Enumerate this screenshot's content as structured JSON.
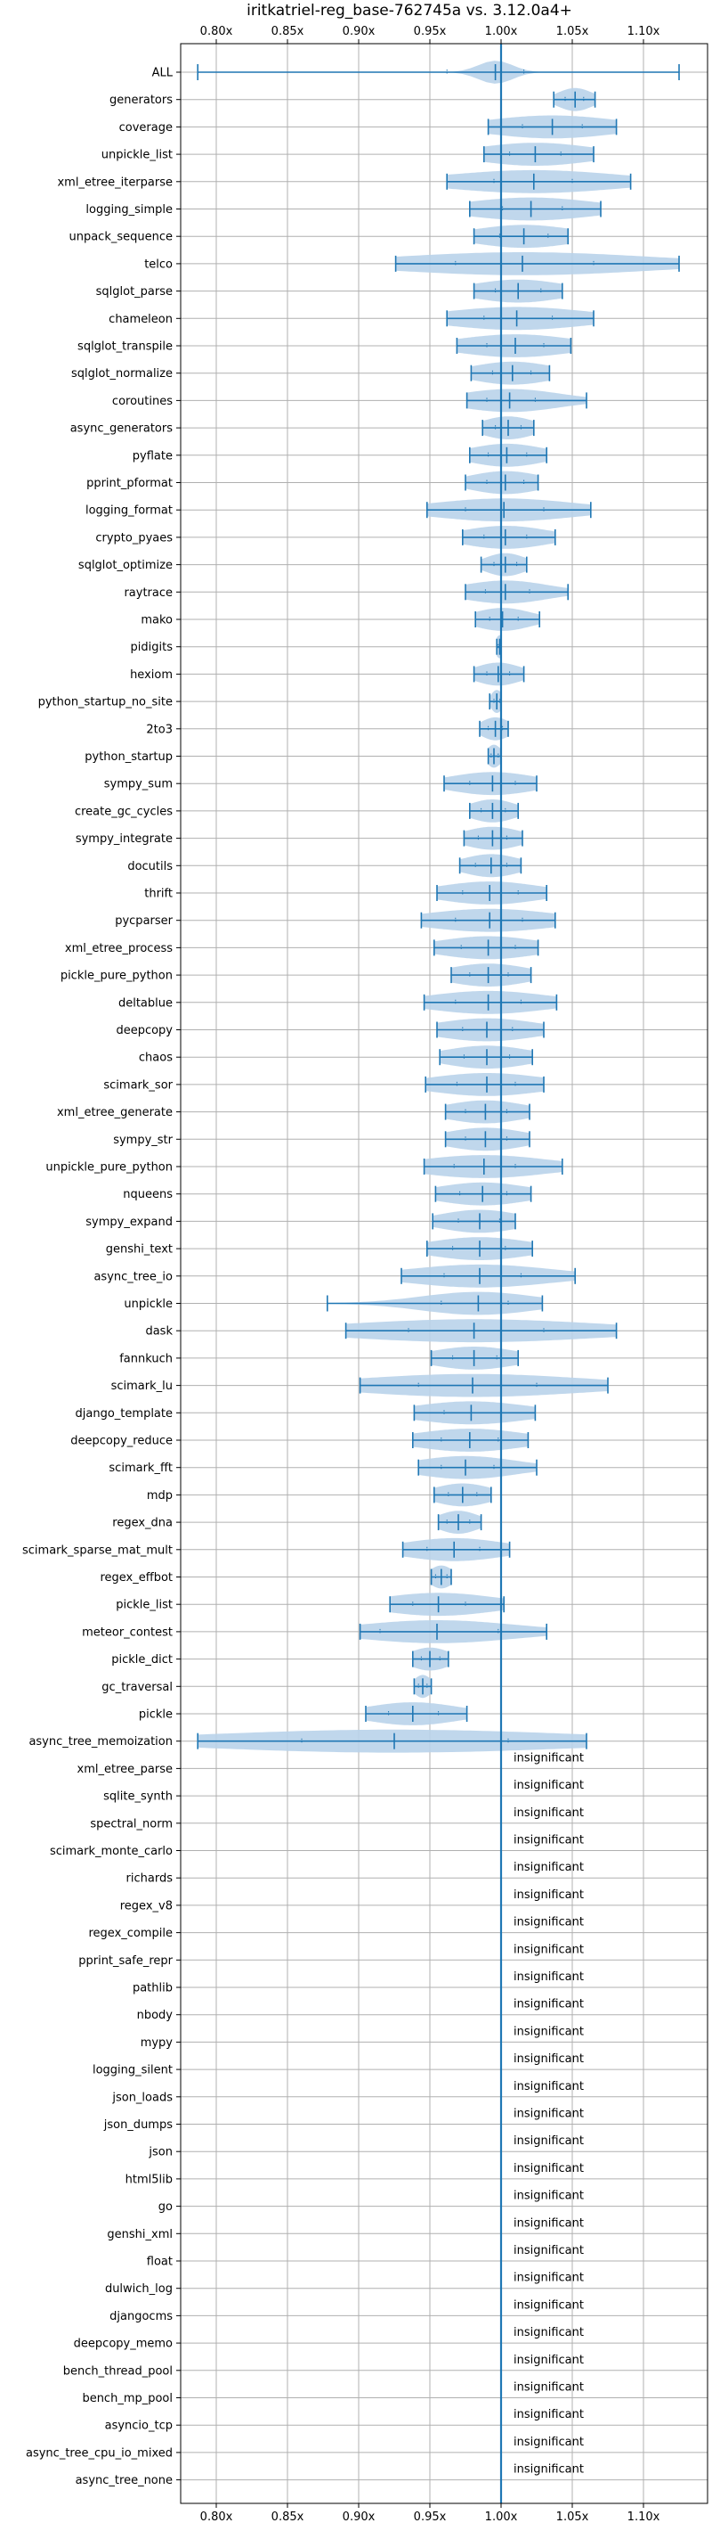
{
  "chart_data": {
    "type": "violin",
    "title": "iritkatriel-reg_base-762745a vs. 3.12.0a4+",
    "xlabel": "",
    "ylabel": "",
    "x_axis_position": "top and bottom",
    "xlim": [
      0.775,
      1.145
    ],
    "xticks": [
      0.8,
      0.85,
      0.9,
      0.95,
      1.0,
      1.05,
      1.1
    ],
    "xtick_labels": [
      "0.80x",
      "0.85x",
      "0.90x",
      "0.95x",
      "1.00x",
      "1.05x",
      "1.10x"
    ],
    "grid": true,
    "reference_line": 1.0,
    "colors": {
      "accent": "#1f77b4",
      "violin_fill": "#b9d3ea",
      "grid": "#b0b0b0"
    },
    "insignificant_label": "insignificant",
    "benchmarks": [
      {
        "name": "ALL",
        "min": 0.787,
        "max": 1.125,
        "median": 0.996,
        "q1": 0.962,
        "q3": 1.016,
        "spread": 0.012
      },
      {
        "name": "generators",
        "min": 1.037,
        "max": 1.066,
        "median": 1.052,
        "q1": 1.045,
        "q3": 1.058,
        "spread": 0.012
      },
      {
        "name": "coverage",
        "min": 0.991,
        "max": 1.081,
        "median": 1.036,
        "q1": 1.015,
        "q3": 1.057,
        "spread": 0.045
      },
      {
        "name": "unpickle_list",
        "min": 0.988,
        "max": 1.065,
        "median": 1.024,
        "q1": 1.006,
        "q3": 1.042,
        "spread": 0.04
      },
      {
        "name": "xml_etree_iterparse",
        "min": 0.962,
        "max": 1.091,
        "median": 1.023,
        "q1": 0.995,
        "q3": 1.05,
        "spread": 0.06
      },
      {
        "name": "logging_simple",
        "min": 0.978,
        "max": 1.07,
        "median": 1.021,
        "q1": 1.001,
        "q3": 1.043,
        "spread": 0.045
      },
      {
        "name": "unpack_sequence",
        "min": 0.981,
        "max": 1.047,
        "median": 1.016,
        "q1": 0.999,
        "q3": 1.033,
        "spread": 0.035
      },
      {
        "name": "telco",
        "min": 0.926,
        "max": 1.125,
        "median": 1.015,
        "q1": 0.968,
        "q3": 1.065,
        "spread": 0.09
      },
      {
        "name": "sqlglot_parse",
        "min": 0.981,
        "max": 1.043,
        "median": 1.012,
        "q1": 0.996,
        "q3": 1.028,
        "spread": 0.032
      },
      {
        "name": "chameleon",
        "min": 0.962,
        "max": 1.065,
        "median": 1.011,
        "q1": 0.988,
        "q3": 1.036,
        "spread": 0.05
      },
      {
        "name": "sqlglot_transpile",
        "min": 0.969,
        "max": 1.049,
        "median": 1.01,
        "q1": 0.99,
        "q3": 1.03,
        "spread": 0.04
      },
      {
        "name": "sqlglot_normalize",
        "min": 0.979,
        "max": 1.034,
        "median": 1.008,
        "q1": 0.994,
        "q3": 1.021,
        "spread": 0.028
      },
      {
        "name": "coroutines",
        "min": 0.976,
        "max": 1.06,
        "median": 1.006,
        "q1": 0.99,
        "q3": 1.024,
        "spread": 0.035
      },
      {
        "name": "async_generators",
        "min": 0.987,
        "max": 1.023,
        "median": 1.005,
        "q1": 0.996,
        "q3": 1.014,
        "spread": 0.018
      },
      {
        "name": "pyflate",
        "min": 0.978,
        "max": 1.032,
        "median": 1.004,
        "q1": 0.991,
        "q3": 1.018,
        "spread": 0.026
      },
      {
        "name": "pprint_pformat",
        "min": 0.975,
        "max": 1.026,
        "median": 1.003,
        "q1": 0.99,
        "q3": 1.016,
        "spread": 0.025
      },
      {
        "name": "logging_format",
        "min": 0.948,
        "max": 1.063,
        "median": 1.002,
        "q1": 0.975,
        "q3": 1.03,
        "spread": 0.05
      },
      {
        "name": "crypto_pyaes",
        "min": 0.973,
        "max": 1.038,
        "median": 1.003,
        "q1": 0.988,
        "q3": 1.018,
        "spread": 0.03
      },
      {
        "name": "sqlglot_optimize",
        "min": 0.986,
        "max": 1.018,
        "median": 1.003,
        "q1": 0.995,
        "q3": 1.011,
        "spread": 0.014
      },
      {
        "name": "raytrace",
        "min": 0.975,
        "max": 1.047,
        "median": 1.003,
        "q1": 0.989,
        "q3": 1.02,
        "spread": 0.03
      },
      {
        "name": "mako",
        "min": 0.982,
        "max": 1.027,
        "median": 1.001,
        "q1": 0.992,
        "q3": 1.012,
        "spread": 0.02
      },
      {
        "name": "pidigits",
        "min": 0.997,
        "max": 1.0,
        "median": 0.999,
        "q1": 0.998,
        "q3": 1.0,
        "spread": 0.003
      },
      {
        "name": "hexiom",
        "min": 0.981,
        "max": 1.016,
        "median": 0.998,
        "q1": 0.99,
        "q3": 1.006,
        "spread": 0.016
      },
      {
        "name": "python_startup_no_site",
        "min": 0.992,
        "max": 1.0,
        "median": 0.997,
        "q1": 0.995,
        "q3": 0.999,
        "spread": 0.004
      },
      {
        "name": "2to3",
        "min": 0.985,
        "max": 1.005,
        "median": 0.996,
        "q1": 0.991,
        "q3": 1.001,
        "spread": 0.01
      },
      {
        "name": "python_startup",
        "min": 0.991,
        "max": 1.0,
        "median": 0.995,
        "q1": 0.993,
        "q3": 0.998,
        "spread": 0.005
      },
      {
        "name": "sympy_sum",
        "min": 0.96,
        "max": 1.025,
        "median": 0.994,
        "q1": 0.978,
        "q3": 1.01,
        "spread": 0.03
      },
      {
        "name": "create_gc_cycles",
        "min": 0.978,
        "max": 1.012,
        "median": 0.994,
        "q1": 0.986,
        "q3": 1.003,
        "spread": 0.016
      },
      {
        "name": "sympy_integrate",
        "min": 0.974,
        "max": 1.015,
        "median": 0.994,
        "q1": 0.984,
        "q3": 1.004,
        "spread": 0.02
      },
      {
        "name": "docutils",
        "min": 0.971,
        "max": 1.014,
        "median": 0.993,
        "q1": 0.982,
        "q3": 1.004,
        "spread": 0.02
      },
      {
        "name": "thrift",
        "min": 0.955,
        "max": 1.032,
        "median": 0.992,
        "q1": 0.973,
        "q3": 1.012,
        "spread": 0.035
      },
      {
        "name": "pycparser",
        "min": 0.944,
        "max": 1.038,
        "median": 0.992,
        "q1": 0.968,
        "q3": 1.015,
        "spread": 0.045
      },
      {
        "name": "xml_etree_process",
        "min": 0.953,
        "max": 1.026,
        "median": 0.991,
        "q1": 0.972,
        "q3": 1.01,
        "spread": 0.035
      },
      {
        "name": "pickle_pure_python",
        "min": 0.965,
        "max": 1.021,
        "median": 0.991,
        "q1": 0.978,
        "q3": 1.005,
        "spread": 0.028
      },
      {
        "name": "deltablue",
        "min": 0.946,
        "max": 1.039,
        "median": 0.991,
        "q1": 0.968,
        "q3": 1.014,
        "spread": 0.042
      },
      {
        "name": "deepcopy",
        "min": 0.955,
        "max": 1.03,
        "median": 0.99,
        "q1": 0.973,
        "q3": 1.008,
        "spread": 0.035
      },
      {
        "name": "chaos",
        "min": 0.957,
        "max": 1.022,
        "median": 0.99,
        "q1": 0.974,
        "q3": 1.006,
        "spread": 0.03
      },
      {
        "name": "scimark_sor",
        "min": 0.947,
        "max": 1.03,
        "median": 0.99,
        "q1": 0.969,
        "q3": 1.01,
        "spread": 0.04
      },
      {
        "name": "xml_etree_generate",
        "min": 0.961,
        "max": 1.02,
        "median": 0.989,
        "q1": 0.975,
        "q3": 1.004,
        "spread": 0.028
      },
      {
        "name": "sympy_str",
        "min": 0.961,
        "max": 1.02,
        "median": 0.989,
        "q1": 0.975,
        "q3": 1.004,
        "spread": 0.028
      },
      {
        "name": "unpickle_pure_python",
        "min": 0.946,
        "max": 1.043,
        "median": 0.988,
        "q1": 0.967,
        "q3": 1.01,
        "spread": 0.045
      },
      {
        "name": "nqueens",
        "min": 0.954,
        "max": 1.021,
        "median": 0.987,
        "q1": 0.971,
        "q3": 1.004,
        "spread": 0.032
      },
      {
        "name": "sympy_expand",
        "min": 0.952,
        "max": 1.01,
        "median": 0.985,
        "q1": 0.97,
        "q3": 0.999,
        "spread": 0.028
      },
      {
        "name": "genshi_text",
        "min": 0.948,
        "max": 1.022,
        "median": 0.985,
        "q1": 0.966,
        "q3": 1.003,
        "spread": 0.035
      },
      {
        "name": "async_tree_io",
        "min": 0.93,
        "max": 1.052,
        "median": 0.985,
        "q1": 0.96,
        "q3": 1.014,
        "spread": 0.05
      },
      {
        "name": "unpickle",
        "min": 0.878,
        "max": 1.029,
        "median": 0.984,
        "q1": 0.958,
        "q3": 1.005,
        "spread": 0.04
      },
      {
        "name": "dask",
        "min": 0.891,
        "max": 1.081,
        "median": 0.981,
        "q1": 0.935,
        "q3": 1.03,
        "spread": 0.09
      },
      {
        "name": "fannkuch",
        "min": 0.951,
        "max": 1.012,
        "median": 0.981,
        "q1": 0.966,
        "q3": 0.997,
        "spread": 0.03
      },
      {
        "name": "scimark_lu",
        "min": 0.901,
        "max": 1.075,
        "median": 0.98,
        "q1": 0.942,
        "q3": 1.025,
        "spread": 0.08
      },
      {
        "name": "django_template",
        "min": 0.939,
        "max": 1.024,
        "median": 0.979,
        "q1": 0.96,
        "q3": 1.0,
        "spread": 0.04
      },
      {
        "name": "deepcopy_reduce",
        "min": 0.938,
        "max": 1.019,
        "median": 0.978,
        "q1": 0.958,
        "q3": 0.998,
        "spread": 0.038
      },
      {
        "name": "scimark_fft",
        "min": 0.942,
        "max": 1.025,
        "median": 0.975,
        "q1": 0.958,
        "q3": 0.995,
        "spread": 0.035
      },
      {
        "name": "mdp",
        "min": 0.953,
        "max": 0.993,
        "median": 0.973,
        "q1": 0.963,
        "q3": 0.983,
        "spread": 0.02
      },
      {
        "name": "regex_dna",
        "min": 0.956,
        "max": 0.986,
        "median": 0.97,
        "q1": 0.962,
        "q3": 0.978,
        "spread": 0.014
      },
      {
        "name": "scimark_sparse_mat_mult",
        "min": 0.931,
        "max": 1.006,
        "median": 0.967,
        "q1": 0.948,
        "q3": 0.985,
        "spread": 0.035
      },
      {
        "name": "regex_effbot",
        "min": 0.951,
        "max": 0.965,
        "median": 0.958,
        "q1": 0.954,
        "q3": 0.962,
        "spread": 0.008
      },
      {
        "name": "pickle_list",
        "min": 0.922,
        "max": 1.002,
        "median": 0.956,
        "q1": 0.938,
        "q3": 0.975,
        "spread": 0.04
      },
      {
        "name": "meteor_contest",
        "min": 0.901,
        "max": 1.032,
        "median": 0.955,
        "q1": 0.915,
        "q3": 0.998,
        "spread": 0.055
      },
      {
        "name": "pickle_dict",
        "min": 0.938,
        "max": 0.963,
        "median": 0.95,
        "q1": 0.944,
        "q3": 0.957,
        "spread": 0.014
      },
      {
        "name": "gc_traversal",
        "min": 0.939,
        "max": 0.951,
        "median": 0.945,
        "q1": 0.942,
        "q3": 0.948,
        "spread": 0.006
      },
      {
        "name": "pickle",
        "min": 0.905,
        "max": 0.976,
        "median": 0.938,
        "q1": 0.921,
        "q3": 0.956,
        "spread": 0.032
      },
      {
        "name": "async_tree_memoization",
        "min": 0.787,
        "max": 1.06,
        "median": 0.925,
        "q1": 0.86,
        "q3": 1.005,
        "spread": 0.13
      }
    ],
    "insignificant": [
      "xml_etree_parse",
      "sqlite_synth",
      "spectral_norm",
      "scimark_monte_carlo",
      "richards",
      "regex_v8",
      "regex_compile",
      "pprint_safe_repr",
      "pathlib",
      "nbody",
      "mypy",
      "logging_silent",
      "json_loads",
      "json_dumps",
      "json",
      "html5lib",
      "go",
      "genshi_xml",
      "float",
      "dulwich_log",
      "djangocms",
      "deepcopy_memo",
      "bench_thread_pool",
      "bench_mp_pool",
      "asyncio_tcp",
      "async_tree_cpu_io_mixed",
      "async_tree_none"
    ]
  }
}
